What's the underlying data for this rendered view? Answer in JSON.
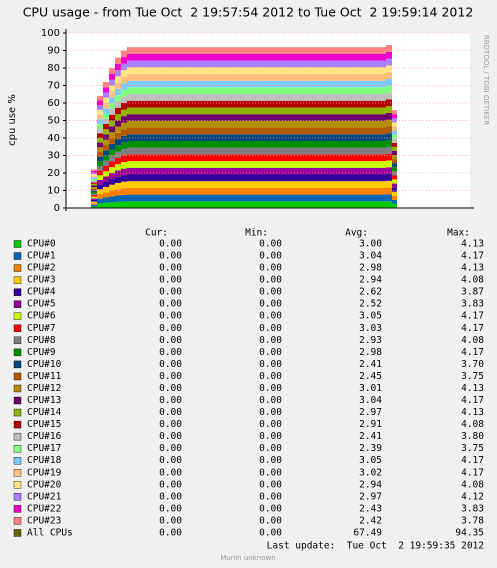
{
  "chart_data": {
    "type": "area",
    "title": "CPU usage - from Tue Oct  2 19:57:54 2012 to Tue Oct  2 19:59:14 2012",
    "y_label": "cpu use %",
    "x": [
      25,
      31,
      37,
      43,
      49,
      55,
      61,
      320,
      326,
      331
    ],
    "xlim": [
      0,
      404
    ],
    "ylim": [
      0,
      100
    ],
    "yticks": [
      0,
      10,
      20,
      30,
      40,
      50,
      60,
      70,
      80,
      90,
      100
    ],
    "grid": true,
    "series": [
      {
        "name": "CPU#0",
        "color": "#00CC00",
        "values": [
          0.92,
          2.67,
          3.0,
          3.33,
          3.58,
          3.75,
          3.83,
          3.88,
          2.33,
          null
        ]
      },
      {
        "name": "CPU#1",
        "color": "#0066B3",
        "values": [
          0.92,
          2.67,
          3.0,
          3.33,
          3.58,
          3.75,
          3.83,
          3.88,
          2.33,
          null
        ]
      },
      {
        "name": "CPU#2",
        "color": "#FF8000",
        "values": [
          0.92,
          2.67,
          3.0,
          3.33,
          3.58,
          3.75,
          3.83,
          3.88,
          2.33,
          null
        ]
      },
      {
        "name": "CPU#3",
        "color": "#FFCC00",
        "values": [
          0.92,
          2.67,
          3.0,
          3.33,
          3.58,
          3.75,
          3.83,
          3.88,
          2.33,
          null
        ]
      },
      {
        "name": "CPU#4",
        "color": "#330099",
        "values": [
          0.92,
          2.67,
          3.0,
          3.33,
          3.58,
          3.75,
          3.83,
          3.88,
          2.33,
          null
        ]
      },
      {
        "name": "CPU#5",
        "color": "#990099",
        "values": [
          0.92,
          2.67,
          3.0,
          3.33,
          3.58,
          3.75,
          3.83,
          3.88,
          2.33,
          null
        ]
      },
      {
        "name": "CPU#6",
        "color": "#CCFF00",
        "values": [
          0.92,
          2.67,
          3.0,
          3.33,
          3.58,
          3.75,
          3.83,
          3.88,
          2.33,
          null
        ]
      },
      {
        "name": "CPU#7",
        "color": "#FF0000",
        "values": [
          0.92,
          2.67,
          3.0,
          3.33,
          3.58,
          3.75,
          3.83,
          3.88,
          2.33,
          null
        ]
      },
      {
        "name": "CPU#8",
        "color": "#808080",
        "values": [
          0.92,
          2.67,
          3.0,
          3.33,
          3.58,
          3.75,
          3.83,
          3.88,
          2.33,
          null
        ]
      },
      {
        "name": "CPU#9",
        "color": "#008F00",
        "values": [
          0.92,
          2.67,
          3.0,
          3.33,
          3.58,
          3.75,
          3.83,
          3.88,
          2.33,
          null
        ]
      },
      {
        "name": "CPU#10",
        "color": "#00487D",
        "values": [
          0.92,
          2.67,
          3.0,
          3.33,
          3.58,
          3.75,
          3.83,
          3.88,
          2.33,
          null
        ]
      },
      {
        "name": "CPU#11",
        "color": "#B35A00",
        "values": [
          0.92,
          2.67,
          3.0,
          3.33,
          3.58,
          3.75,
          3.83,
          3.88,
          2.33,
          null
        ]
      },
      {
        "name": "CPU#12",
        "color": "#B38F00",
        "values": [
          0.92,
          2.67,
          3.0,
          3.33,
          3.58,
          3.75,
          3.83,
          3.88,
          2.33,
          null
        ]
      },
      {
        "name": "CPU#13",
        "color": "#6B006B",
        "values": [
          0.92,
          2.67,
          3.0,
          3.33,
          3.58,
          3.75,
          3.83,
          3.88,
          2.33,
          null
        ]
      },
      {
        "name": "CPU#14",
        "color": "#8FB300",
        "values": [
          0.92,
          2.67,
          3.0,
          3.33,
          3.58,
          3.75,
          3.83,
          3.88,
          2.33,
          null
        ]
      },
      {
        "name": "CPU#15",
        "color": "#B30000",
        "values": [
          0.92,
          2.67,
          3.0,
          3.33,
          3.58,
          3.75,
          3.83,
          3.88,
          2.33,
          null
        ]
      },
      {
        "name": "CPU#16",
        "color": "#BEBEBE",
        "values": [
          0.92,
          2.67,
          3.0,
          3.33,
          3.58,
          3.75,
          3.83,
          3.88,
          2.33,
          null
        ]
      },
      {
        "name": "CPU#17",
        "color": "#80FF80",
        "values": [
          0.92,
          2.67,
          3.0,
          3.33,
          3.58,
          3.75,
          3.83,
          3.88,
          2.33,
          null
        ]
      },
      {
        "name": "CPU#18",
        "color": "#80C9FF",
        "values": [
          0.92,
          2.67,
          3.0,
          3.33,
          3.58,
          3.75,
          3.83,
          3.88,
          2.33,
          null
        ]
      },
      {
        "name": "CPU#19",
        "color": "#FFC080",
        "values": [
          0.92,
          2.67,
          3.0,
          3.33,
          3.58,
          3.75,
          3.83,
          3.88,
          2.33,
          null
        ]
      },
      {
        "name": "CPU#20",
        "color": "#FFE680",
        "values": [
          0.92,
          2.67,
          3.0,
          3.33,
          3.58,
          3.75,
          3.83,
          3.88,
          2.33,
          null
        ]
      },
      {
        "name": "CPU#21",
        "color": "#AA80FF",
        "values": [
          0.92,
          2.67,
          3.0,
          3.33,
          3.58,
          3.75,
          3.83,
          3.88,
          2.33,
          null
        ]
      },
      {
        "name": "CPU#22",
        "color": "#EE00CC",
        "values": [
          0.92,
          2.67,
          3.0,
          3.33,
          3.58,
          3.75,
          3.83,
          3.88,
          2.33,
          null
        ]
      },
      {
        "name": "CPU#23",
        "color": "#FF8080",
        "values": [
          0.92,
          2.67,
          3.0,
          3.33,
          3.58,
          3.75,
          3.83,
          3.88,
          2.33,
          null
        ]
      }
    ]
  },
  "side_label": "RRDTOOL / TOBI OETIKER",
  "legend": {
    "headers": [
      "Cur:",
      "Min:",
      "Avg:",
      "Max:"
    ],
    "rows": [
      [
        "0.00",
        "0.00",
        "3.00",
        "4.13"
      ],
      [
        "0.00",
        "0.00",
        "3.04",
        "4.17"
      ],
      [
        "0.00",
        "0.00",
        "2.98",
        "4.13"
      ],
      [
        "0.00",
        "0.00",
        "2.94",
        "4.08"
      ],
      [
        "0.00",
        "0.00",
        "2.62",
        "3.87"
      ],
      [
        "0.00",
        "0.00",
        "2.52",
        "3.83"
      ],
      [
        "0.00",
        "0.00",
        "3.05",
        "4.17"
      ],
      [
        "0.00",
        "0.00",
        "3.03",
        "4.17"
      ],
      [
        "0.00",
        "0.00",
        "2.93",
        "4.08"
      ],
      [
        "0.00",
        "0.00",
        "2.98",
        "4.17"
      ],
      [
        "0.00",
        "0.00",
        "2.41",
        "3.70"
      ],
      [
        "0.00",
        "0.00",
        "2.45",
        "3.75"
      ],
      [
        "0.00",
        "0.00",
        "3.01",
        "4.13"
      ],
      [
        "0.00",
        "0.00",
        "3.04",
        "4.17"
      ],
      [
        "0.00",
        "0.00",
        "2.97",
        "4.13"
      ],
      [
        "0.00",
        "0.00",
        "2.91",
        "4.08"
      ],
      [
        "0.00",
        "0.00",
        "2.41",
        "3.80"
      ],
      [
        "0.00",
        "0.00",
        "2.39",
        "3.75"
      ],
      [
        "0.00",
        "0.00",
        "3.05",
        "4.17"
      ],
      [
        "0.00",
        "0.00",
        "3.02",
        "4.17"
      ],
      [
        "0.00",
        "0.00",
        "2.94",
        "4.08"
      ],
      [
        "0.00",
        "0.00",
        "2.97",
        "4.12"
      ],
      [
        "0.00",
        "0.00",
        "2.43",
        "3.83"
      ],
      [
        "0.00",
        "0.00",
        "2.42",
        "3.78"
      ]
    ],
    "total": {
      "name": "All CPUs",
      "color": "#666600",
      "stats": [
        "0.00",
        "0.00",
        "67.49",
        "94.35"
      ]
    }
  },
  "last_update": "Last update:  Tue Oct  2 19:59:35 2012",
  "footer": "Munin unknown"
}
